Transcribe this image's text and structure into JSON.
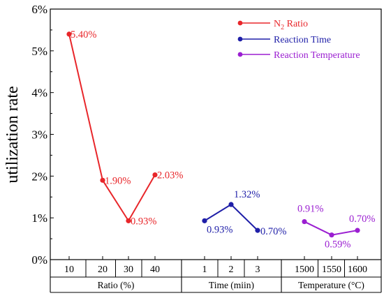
{
  "chart_data": {
    "type": "line",
    "ylabel": "utilization rate",
    "ylim": [
      0,
      6
    ],
    "yticks": [
      "0%",
      "1%",
      "2%",
      "3%",
      "4%",
      "5%",
      "6%"
    ],
    "grid": false,
    "legend_position": "top-right",
    "groups": [
      {
        "name": "N2 Ratio",
        "axis_label": "Ratio (%)",
        "color": "#e8262a",
        "categories": [
          "10",
          "20",
          "30",
          "40"
        ],
        "values": [
          5.4,
          1.9,
          0.93,
          2.03
        ],
        "labels": [
          "5.40%",
          "1.90%",
          "0.93%",
          "2.03%"
        ]
      },
      {
        "name": "Reaction Time",
        "axis_label": "Time (miin)",
        "color": "#1f1fa8",
        "categories": [
          "1",
          "2",
          "3"
        ],
        "values": [
          0.93,
          1.32,
          0.7
        ],
        "labels": [
          "0.93%",
          "1.32%",
          "0.70%"
        ]
      },
      {
        "name": "Reaction Temperature",
        "axis_label": "Temperature (°C)",
        "color": "#9b1fd1",
        "categories": [
          "1500",
          "1550",
          "1600"
        ],
        "values": [
          0.91,
          0.59,
          0.7
        ],
        "labels": [
          "0.91%",
          "0.59%",
          "0.70%"
        ]
      }
    ]
  },
  "legend": {
    "n2_prefix": "N",
    "n2_sub": "2",
    "n2_suffix": " Ratio",
    "reaction_time": "Reaction Time",
    "reaction_temperature": "Reaction Temperature"
  }
}
